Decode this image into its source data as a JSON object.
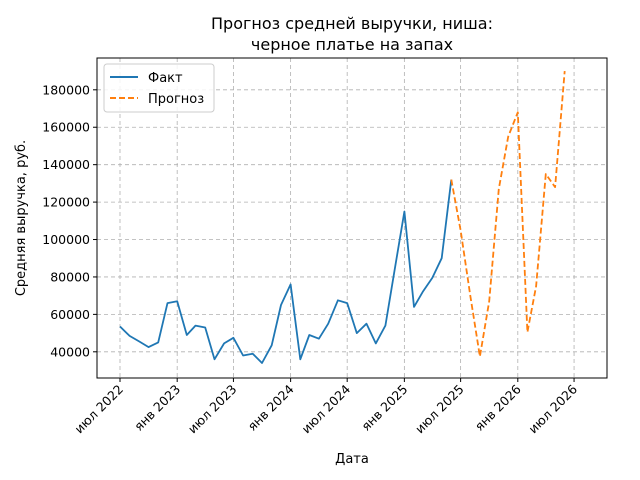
{
  "chart_data": {
    "type": "line",
    "title_lines": [
      "Прогноз средней выручки, ниша:",
      "черное платье на запах"
    ],
    "xlabel": "Дата",
    "ylabel": "Средняя выручка, руб.",
    "x_ticks": [
      {
        "date": "2022-07-01",
        "label": "июл 2022"
      },
      {
        "date": "2023-01-01",
        "label": "янв 2023"
      },
      {
        "date": "2023-07-01",
        "label": "июл 2023"
      },
      {
        "date": "2024-01-01",
        "label": "янв 2024"
      },
      {
        "date": "2024-07-01",
        "label": "июл 2024"
      },
      {
        "date": "2025-01-01",
        "label": "янв 2025"
      },
      {
        "date": "2025-07-01",
        "label": "июл 2025"
      },
      {
        "date": "2026-01-01",
        "label": "янв 2026"
      },
      {
        "date": "2026-07-01",
        "label": "июл 2026"
      }
    ],
    "y_ticks": [
      40000,
      60000,
      80000,
      100000,
      120000,
      140000,
      160000,
      180000
    ],
    "xlim": [
      "2022-04-18",
      "2026-10-15"
    ],
    "ylim": [
      26000,
      197000
    ],
    "grid": true,
    "legend_position": "top-left",
    "series": [
      {
        "name": "Факт",
        "color": "#1f77b4",
        "style": "solid",
        "points": [
          [
            "2022-07-01",
            53500
          ],
          [
            "2022-08-01",
            48500
          ],
          [
            "2022-09-01",
            45500
          ],
          [
            "2022-10-01",
            42500
          ],
          [
            "2022-11-01",
            45000
          ],
          [
            "2022-12-01",
            66000
          ],
          [
            "2023-01-01",
            67000
          ],
          [
            "2023-02-01",
            49000
          ],
          [
            "2023-03-01",
            54000
          ],
          [
            "2023-04-01",
            53000
          ],
          [
            "2023-05-01",
            36000
          ],
          [
            "2023-06-01",
            44500
          ],
          [
            "2023-07-01",
            47500
          ],
          [
            "2023-08-01",
            38000
          ],
          [
            "2023-09-01",
            39000
          ],
          [
            "2023-10-01",
            34000
          ],
          [
            "2023-11-01",
            43500
          ],
          [
            "2023-12-01",
            65000
          ],
          [
            "2024-01-01",
            76000
          ],
          [
            "2024-02-01",
            36000
          ],
          [
            "2024-03-01",
            49000
          ],
          [
            "2024-04-01",
            47000
          ],
          [
            "2024-05-01",
            55000
          ],
          [
            "2024-06-01",
            67500
          ],
          [
            "2024-07-01",
            66000
          ],
          [
            "2024-08-01",
            50000
          ],
          [
            "2024-09-01",
            55000
          ],
          [
            "2024-10-01",
            44500
          ],
          [
            "2024-11-01",
            54000
          ],
          [
            "2024-12-01",
            84000
          ],
          [
            "2025-01-01",
            115000
          ],
          [
            "2025-02-01",
            64000
          ],
          [
            "2025-03-01",
            72000
          ],
          [
            "2025-04-01",
            79500
          ],
          [
            "2025-05-01",
            90000
          ],
          [
            "2025-06-01",
            132000
          ]
        ]
      },
      {
        "name": "Прогноз",
        "color": "#ff7f0e",
        "style": "dashed",
        "points": [
          [
            "2025-06-01",
            132000
          ],
          [
            "2025-07-01",
            105000
          ],
          [
            "2025-08-01",
            70000
          ],
          [
            "2025-09-01",
            37500
          ],
          [
            "2025-10-01",
            67000
          ],
          [
            "2025-11-01",
            127000
          ],
          [
            "2025-12-01",
            155000
          ],
          [
            "2026-01-01",
            168000
          ],
          [
            "2026-02-01",
            50500
          ],
          [
            "2026-03-01",
            75000
          ],
          [
            "2026-04-01",
            135000
          ],
          [
            "2026-05-01",
            128000
          ],
          [
            "2026-06-01",
            190000
          ]
        ]
      }
    ]
  }
}
